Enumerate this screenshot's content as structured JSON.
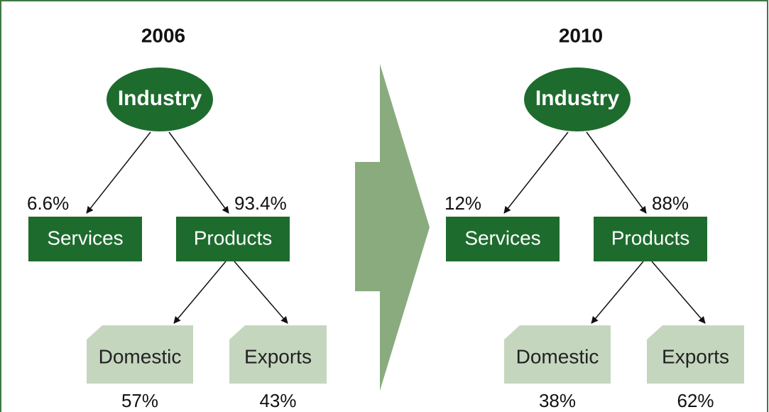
{
  "panels": [
    {
      "year": "2006",
      "root": "Industry",
      "left": {
        "label": "Services",
        "share": "6.6%"
      },
      "right": {
        "label": "Products",
        "share": "93.4%"
      },
      "sub_left": {
        "label": "Domestic",
        "share": "57%"
      },
      "sub_right": {
        "label": "Exports",
        "share": "43%"
      }
    },
    {
      "year": "2010",
      "root": "Industry",
      "left": {
        "label": "Services",
        "share": "12%"
      },
      "right": {
        "label": "Products",
        "share": "88%"
      },
      "sub_left": {
        "label": "Domestic",
        "share": "38%"
      },
      "sub_right": {
        "label": "Exports",
        "share": "62%"
      }
    }
  ]
}
